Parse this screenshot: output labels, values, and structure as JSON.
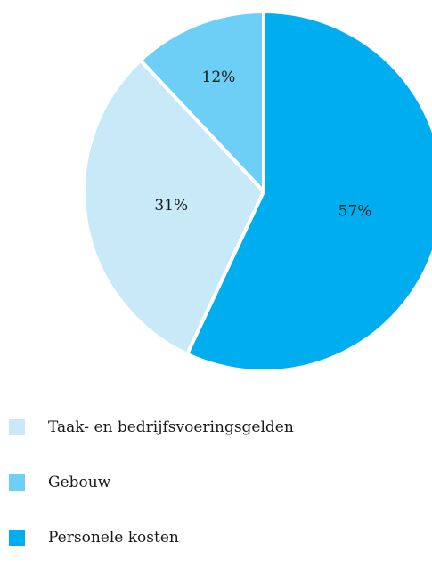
{
  "chart_data": {
    "type": "pie",
    "slices": [
      {
        "label": "Personele kosten",
        "value": 57,
        "value_label": "57%",
        "color": "#00aeef"
      },
      {
        "label": "Taak- en bedrijfsvoeringsgelden",
        "value": 31,
        "value_label": "31%",
        "color": "#c7e9f8"
      },
      {
        "label": "Gebouw",
        "value": 12,
        "value_label": "12%",
        "color": "#6dcff6"
      }
    ],
    "legend": {
      "placement": "bottom-left",
      "entries": [
        {
          "label": "Taak- en bedrijfsvoeringsgelden",
          "color": "#c7e9f8"
        },
        {
          "label": "Gebouw",
          "color": "#6dcff6"
        },
        {
          "label": "Personele kosten",
          "color": "#00aeef"
        }
      ]
    },
    "separator_color": "#ffffff"
  }
}
